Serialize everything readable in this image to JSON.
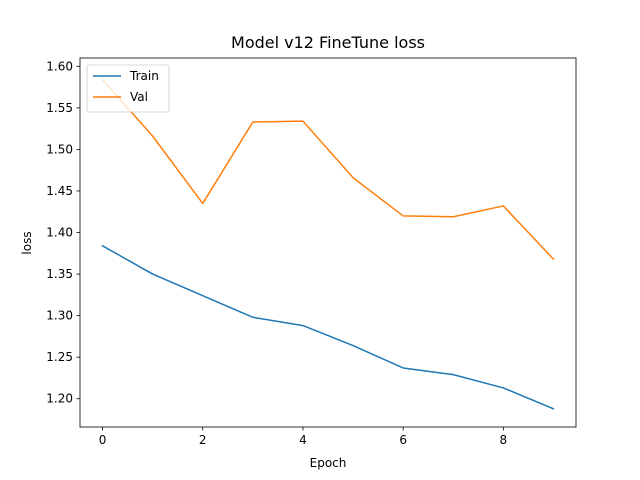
{
  "chart_data": {
    "type": "line",
    "title": "Model v12 FineTune loss",
    "xlabel": "Epoch",
    "ylabel": "loss",
    "x": [
      0,
      1,
      2,
      3,
      4,
      5,
      6,
      7,
      8,
      9
    ],
    "xlim": [
      -0.45,
      9.45
    ],
    "ylim": [
      1.166,
      1.61
    ],
    "xticks": [
      0,
      2,
      4,
      6,
      8
    ],
    "yticks": [
      1.2,
      1.25,
      1.3,
      1.35,
      1.4,
      1.45,
      1.5,
      1.55,
      1.6
    ],
    "grid": false,
    "legend_position": "upper-left",
    "series": [
      {
        "name": "Train",
        "color": "#1f77b4",
        "values": [
          1.384,
          1.35,
          1.324,
          1.298,
          1.288,
          1.264,
          1.237,
          1.229,
          1.213,
          1.188
        ]
      },
      {
        "name": "Val",
        "color": "#ff7f0e",
        "values": [
          1.584,
          1.516,
          1.435,
          1.533,
          1.534,
          1.466,
          1.42,
          1.419,
          1.432,
          1.368
        ]
      }
    ]
  }
}
